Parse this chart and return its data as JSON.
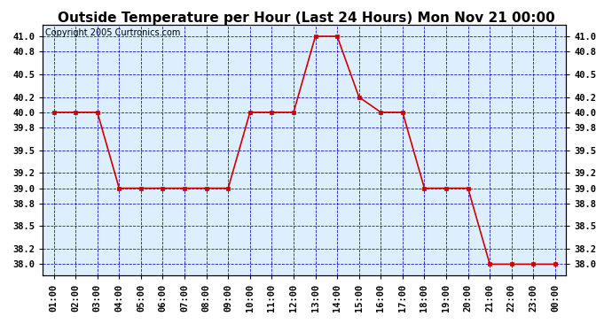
{
  "title": "Outside Temperature per Hour (Last 24 Hours) Mon Nov 21 00:00",
  "copyright": "Copyright 2005 Curtronics.com",
  "x_labels": [
    "01:00",
    "02:00",
    "03:00",
    "04:00",
    "05:00",
    "06:00",
    "07:00",
    "08:00",
    "09:00",
    "10:00",
    "11:00",
    "12:00",
    "13:00",
    "14:00",
    "15:00",
    "16:00",
    "17:00",
    "18:00",
    "19:00",
    "20:00",
    "21:00",
    "22:00",
    "23:00",
    "00:00"
  ],
  "y_values": [
    40.0,
    40.0,
    40.0,
    39.0,
    39.0,
    39.0,
    39.0,
    39.0,
    39.0,
    40.0,
    40.0,
    40.0,
    41.0,
    41.0,
    40.2,
    40.0,
    40.0,
    39.0,
    39.0,
    39.0,
    38.0,
    38.0,
    38.0,
    38.0
  ],
  "ylim_min": 37.85,
  "ylim_max": 41.15,
  "y_ticks": [
    38.0,
    38.2,
    38.5,
    38.8,
    39.0,
    39.2,
    39.5,
    39.8,
    40.0,
    40.2,
    40.5,
    40.8,
    41.0
  ],
  "line_color": "#cc0000",
  "marker_color": "#cc0000",
  "bg_color": "#ddeeff",
  "plot_bg": "#ddeeff",
  "grid_color": "#0000bb",
  "title_color": "#000000",
  "title_fontsize": 11,
  "copyright_fontsize": 7,
  "tick_fontsize": 7.5
}
